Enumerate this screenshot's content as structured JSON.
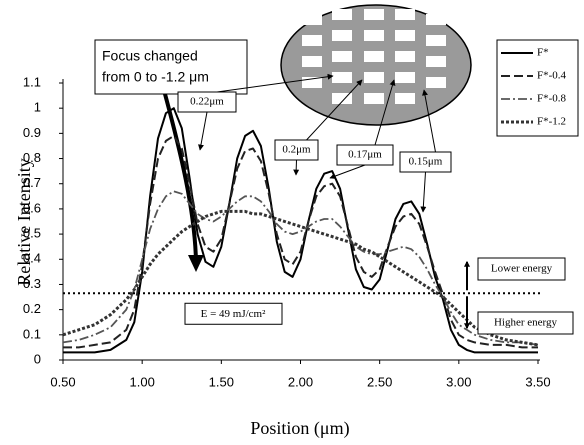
{
  "chart_data": {
    "type": "line",
    "x_label": "Position (μm)",
    "y_label": "Relative Intensity",
    "x": [
      0.5,
      0.6,
      0.7,
      0.8,
      0.9,
      0.95,
      1.0,
      1.05,
      1.1,
      1.15,
      1.2,
      1.25,
      1.3,
      1.35,
      1.4,
      1.45,
      1.5,
      1.55,
      1.6,
      1.65,
      1.7,
      1.75,
      1.8,
      1.85,
      1.9,
      1.95,
      2.0,
      2.05,
      2.1,
      2.15,
      2.2,
      2.25,
      2.3,
      2.35,
      2.4,
      2.45,
      2.5,
      2.55,
      2.6,
      2.65,
      2.7,
      2.75,
      2.8,
      2.85,
      2.9,
      2.95,
      3.0,
      3.05,
      3.1,
      3.2,
      3.3,
      3.4,
      3.5
    ],
    "series": [
      {
        "name": "F*",
        "color": "#000000",
        "dash": "solid",
        "values": [
          0.03,
          0.03,
          0.03,
          0.04,
          0.08,
          0.15,
          0.35,
          0.65,
          0.88,
          0.98,
          1.0,
          0.92,
          0.72,
          0.5,
          0.39,
          0.37,
          0.45,
          0.62,
          0.8,
          0.89,
          0.91,
          0.85,
          0.68,
          0.47,
          0.35,
          0.33,
          0.4,
          0.55,
          0.68,
          0.74,
          0.75,
          0.68,
          0.52,
          0.36,
          0.29,
          0.28,
          0.32,
          0.44,
          0.56,
          0.62,
          0.63,
          0.58,
          0.46,
          0.33,
          0.24,
          0.12,
          0.06,
          0.04,
          0.03,
          0.03,
          0.03,
          0.03,
          0.03
        ]
      },
      {
        "name": "F*-0.4",
        "color": "#222222",
        "dash": "dashed",
        "values": [
          0.05,
          0.05,
          0.06,
          0.07,
          0.12,
          0.2,
          0.38,
          0.62,
          0.8,
          0.87,
          0.89,
          0.84,
          0.7,
          0.54,
          0.45,
          0.43,
          0.48,
          0.62,
          0.76,
          0.83,
          0.84,
          0.79,
          0.66,
          0.5,
          0.4,
          0.38,
          0.43,
          0.55,
          0.65,
          0.69,
          0.7,
          0.65,
          0.53,
          0.41,
          0.35,
          0.33,
          0.36,
          0.45,
          0.53,
          0.57,
          0.58,
          0.54,
          0.45,
          0.35,
          0.26,
          0.16,
          0.1,
          0.08,
          0.07,
          0.06,
          0.06,
          0.05,
          0.05
        ]
      },
      {
        "name": "F*-0.8",
        "color": "#555555",
        "dash": "dashdot",
        "values": [
          0.07,
          0.08,
          0.1,
          0.13,
          0.2,
          0.28,
          0.4,
          0.52,
          0.6,
          0.65,
          0.67,
          0.66,
          0.62,
          0.58,
          0.56,
          0.55,
          0.57,
          0.6,
          0.63,
          0.65,
          0.65,
          0.63,
          0.59,
          0.54,
          0.51,
          0.5,
          0.51,
          0.53,
          0.55,
          0.56,
          0.56,
          0.53,
          0.49,
          0.45,
          0.43,
          0.42,
          0.42,
          0.43,
          0.44,
          0.45,
          0.44,
          0.41,
          0.36,
          0.3,
          0.25,
          0.19,
          0.14,
          0.12,
          0.1,
          0.08,
          0.07,
          0.07,
          0.06
        ]
      },
      {
        "name": "F*-1.2",
        "color": "#333333",
        "dash": "dotted",
        "values": [
          0.1,
          0.12,
          0.14,
          0.18,
          0.24,
          0.28,
          0.33,
          0.38,
          0.42,
          0.45,
          0.48,
          0.51,
          0.53,
          0.55,
          0.57,
          0.58,
          0.59,
          0.59,
          0.59,
          0.59,
          0.58,
          0.58,
          0.57,
          0.56,
          0.55,
          0.54,
          0.53,
          0.52,
          0.51,
          0.5,
          0.49,
          0.48,
          0.47,
          0.46,
          0.44,
          0.43,
          0.41,
          0.39,
          0.37,
          0.35,
          0.33,
          0.31,
          0.29,
          0.27,
          0.25,
          0.22,
          0.19,
          0.16,
          0.13,
          0.1,
          0.08,
          0.07,
          0.06
        ]
      }
    ],
    "xlim": [
      0.5,
      3.5
    ],
    "xticks": [
      {
        "value": 0.5,
        "label": "0.50"
      },
      {
        "value": 1.0,
        "label": "1.00"
      },
      {
        "value": 1.5,
        "label": "1.50"
      },
      {
        "value": 2.0,
        "label": "2.00"
      },
      {
        "value": 2.5,
        "label": "2.50"
      },
      {
        "value": 3.0,
        "label": "3.00"
      },
      {
        "value": 3.5,
        "label": "3.50"
      }
    ],
    "ylim": [
      0,
      1.1
    ],
    "yticks": [
      0,
      0.1,
      0.2,
      0.3,
      0.4,
      0.5,
      0.6,
      0.7,
      0.8,
      0.9,
      1,
      1.1
    ],
    "legend": "upper right",
    "reference_line": {
      "value": 0.265,
      "label": "E = 49 mJ/cm²"
    },
    "focus_note": [
      "Focus changed",
      "from 0 to -1.2 μm"
    ],
    "feature_labels": [
      "0.22μm",
      "0.2μm",
      "0.17μm",
      "0.15μm"
    ],
    "energy_labels": [
      "Lower energy",
      "Higher energy"
    ]
  }
}
